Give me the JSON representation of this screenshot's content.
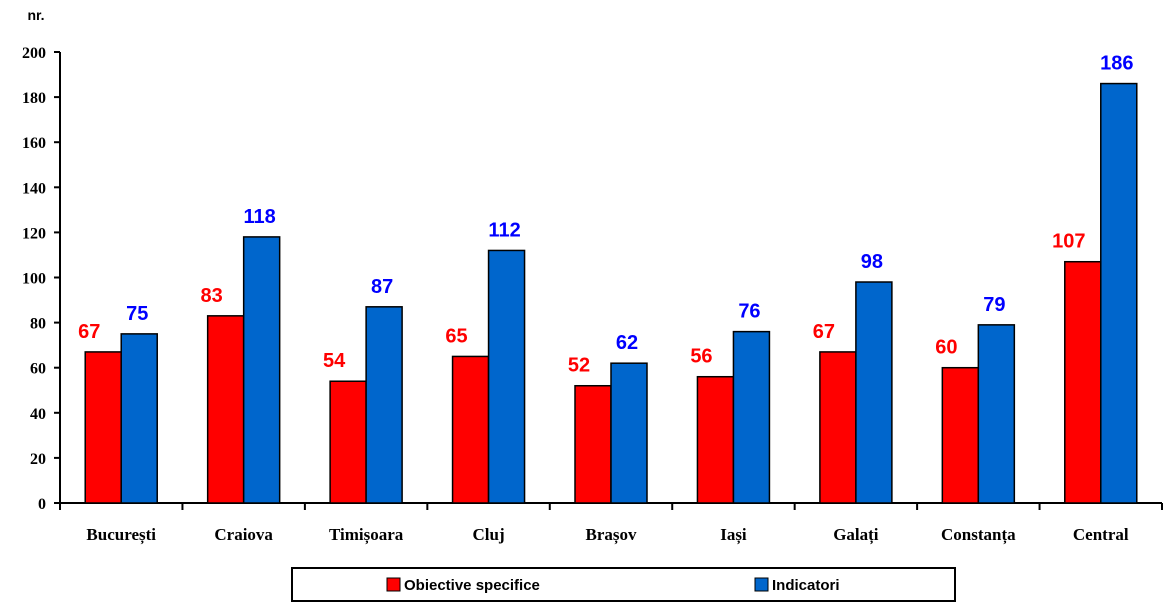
{
  "chart_data": {
    "type": "bar",
    "ylabel": "nr.",
    "ylim": [
      0,
      200
    ],
    "yticks": [
      0,
      20,
      40,
      60,
      80,
      100,
      120,
      140,
      160,
      180,
      200
    ],
    "grid": false,
    "legend_position": "bottom",
    "categories": [
      "București",
      "Craiova",
      "Timișoara",
      "Cluj",
      "Brașov",
      "Iași",
      "Galați",
      "Constanța",
      "Central"
    ],
    "series": [
      {
        "name": "Obiective specifice",
        "color": "#ff0000",
        "label_color": "#ff0000",
        "values": [
          67,
          83,
          54,
          65,
          52,
          56,
          67,
          60,
          107
        ]
      },
      {
        "name": "Indicatori",
        "color": "#0066cc",
        "label_color": "#0000ff",
        "values": [
          75,
          118,
          87,
          112,
          62,
          76,
          98,
          79,
          186
        ]
      }
    ]
  }
}
